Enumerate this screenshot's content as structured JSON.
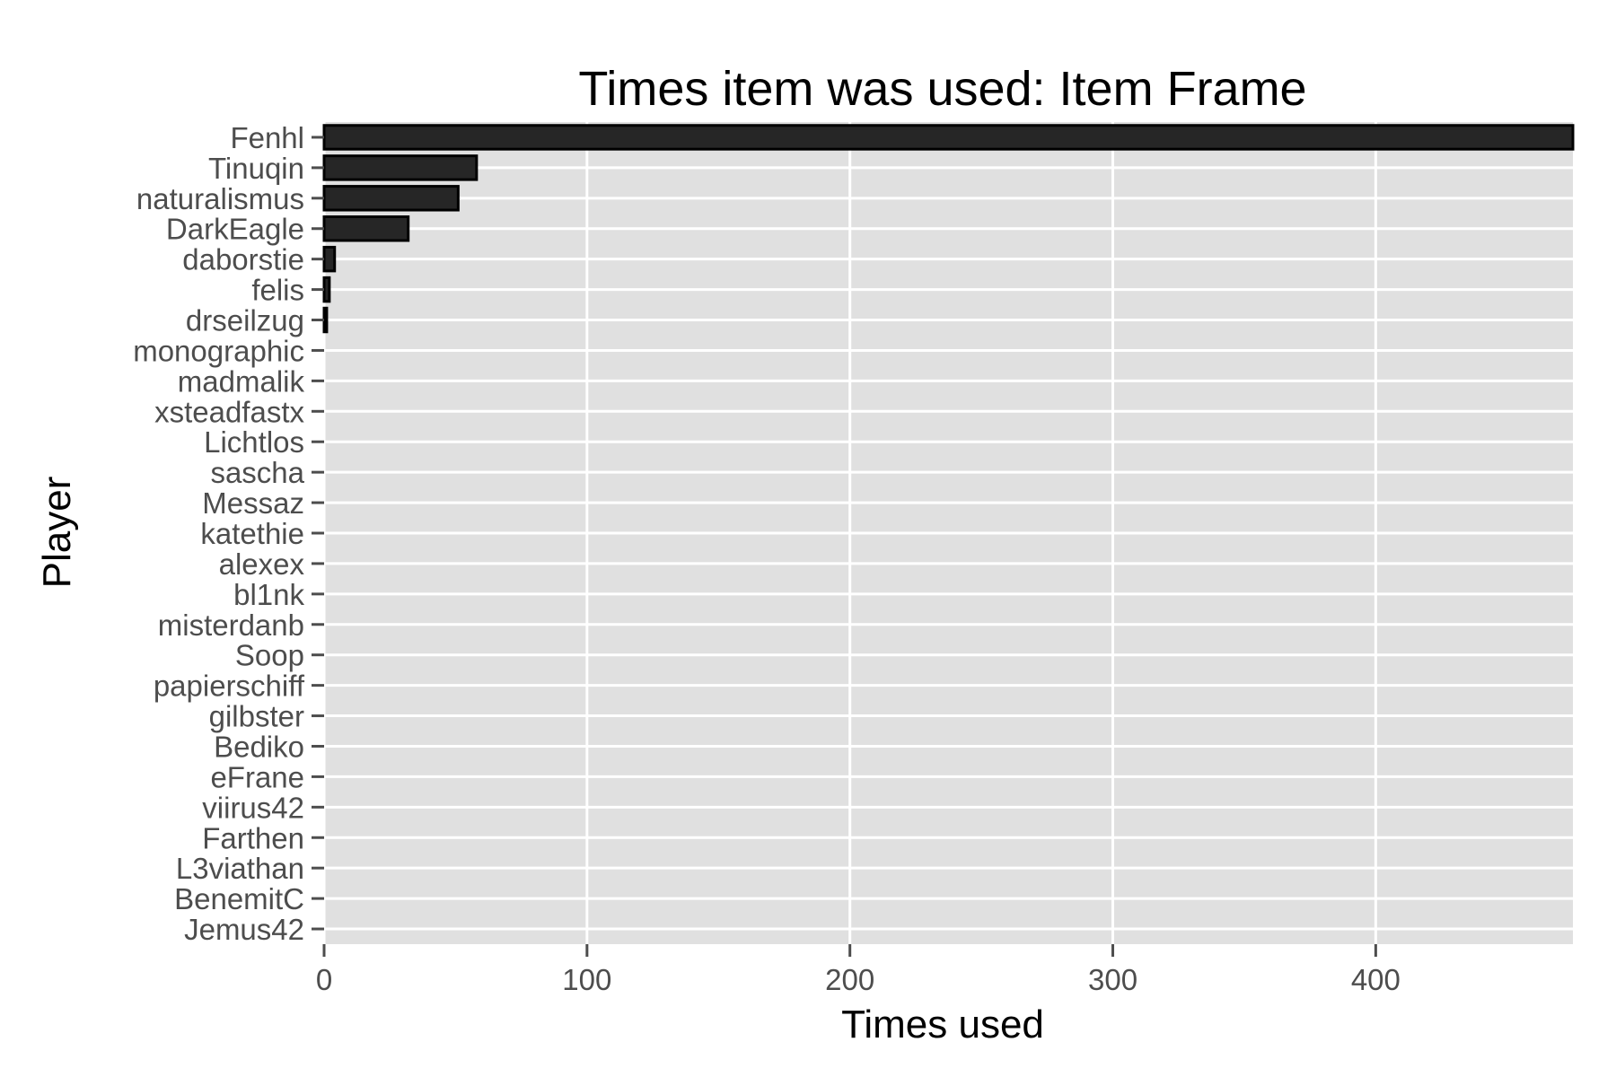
{
  "chart_data": {
    "type": "bar",
    "orientation": "horizontal",
    "title": "Times item was used: Item Frame",
    "xlabel": "Times used",
    "ylabel": "Player",
    "xlim": [
      0,
      475
    ],
    "x_ticks": [
      0,
      100,
      200,
      300,
      400
    ],
    "grid": true,
    "legend": "none",
    "categories": [
      "Fenhl",
      "Tinuqin",
      "naturalismus",
      "DarkEagle",
      "daborstie",
      "felis",
      "drseilzug",
      "monographic",
      "madmalik",
      "xsteadfastx",
      "Lichtlos",
      "sascha",
      "Messaz",
      "katethie",
      "alexex",
      "bl1nk",
      "misterdanb",
      "Soop",
      "papierschiff",
      "gilbster",
      "Bediko",
      "eFrane",
      "viirus42",
      "Farthen",
      "L3viathan",
      "BenemitC",
      "Jemus42"
    ],
    "values": [
      475,
      58,
      51,
      32,
      4,
      2,
      1,
      0,
      0,
      0,
      0,
      0,
      0,
      0,
      0,
      0,
      0,
      0,
      0,
      0,
      0,
      0,
      0,
      0,
      0,
      0,
      0
    ],
    "colors": {
      "bar_fill": "#262626",
      "bar_outline": "#000000",
      "panel_background": "#e0e0e0",
      "grid": "#ffffff",
      "tick_text": "#4d4d4d"
    }
  }
}
